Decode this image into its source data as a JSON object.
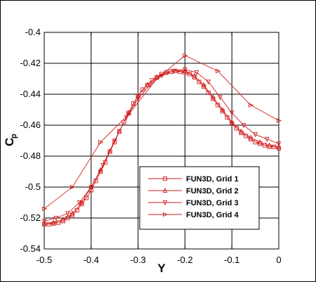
{
  "chart_data": {
    "type": "line",
    "xlabel": "Y",
    "ylabel": "C",
    "ylabel_subscript": "p",
    "xlim": [
      -0.5,
      0
    ],
    "ylim": [
      -0.54,
      -0.4
    ],
    "x_ticks": [
      "-0.5",
      "-0.4",
      "-0.3",
      "-0.2",
      "-0.1",
      "0"
    ],
    "y_ticks": [
      "-0.4",
      "-0.42",
      "-0.44",
      "-0.46",
      "-0.48",
      "-0.5",
      "-0.52",
      "-0.54"
    ],
    "grid": true,
    "legend_position": "bottom-right",
    "color": "#d21e1e",
    "series": [
      {
        "name": "FUN3D, Grid 1",
        "marker": "square",
        "x": [
          -0.5,
          -0.49,
          -0.48,
          -0.47,
          -0.46,
          -0.45,
          -0.44,
          -0.43,
          -0.42,
          -0.41,
          -0.4,
          -0.39,
          -0.38,
          -0.37,
          -0.36,
          -0.35,
          -0.34,
          -0.33,
          -0.32,
          -0.31,
          -0.3,
          -0.29,
          -0.28,
          -0.27,
          -0.26,
          -0.25,
          -0.24,
          -0.23,
          -0.22,
          -0.21,
          -0.2,
          -0.19,
          -0.18,
          -0.17,
          -0.16,
          -0.15,
          -0.14,
          -0.13,
          -0.12,
          -0.11,
          -0.1,
          -0.09,
          -0.08,
          -0.07,
          -0.06,
          -0.05,
          -0.04,
          -0.03,
          -0.02,
          -0.01,
          0
        ],
        "y": [
          -0.524,
          -0.524,
          -0.5235,
          -0.523,
          -0.522,
          -0.52,
          -0.518,
          -0.515,
          -0.511,
          -0.507,
          -0.502,
          -0.496,
          -0.49,
          -0.484,
          -0.477,
          -0.471,
          -0.464,
          -0.458,
          -0.452,
          -0.446,
          -0.441,
          -0.437,
          -0.434,
          -0.431,
          -0.429,
          -0.427,
          -0.426,
          -0.4255,
          -0.425,
          -0.4255,
          -0.426,
          -0.427,
          -0.429,
          -0.432,
          -0.435,
          -0.439,
          -0.443,
          -0.447,
          -0.451,
          -0.455,
          -0.459,
          -0.462,
          -0.465,
          -0.467,
          -0.469,
          -0.471,
          -0.472,
          -0.473,
          -0.474,
          -0.474,
          -0.475
        ]
      },
      {
        "name": "FUN3D, Grid 2",
        "marker": "triangle-up",
        "x": [
          -0.5,
          -0.48,
          -0.46,
          -0.44,
          -0.42,
          -0.4,
          -0.38,
          -0.36,
          -0.34,
          -0.32,
          -0.3,
          -0.28,
          -0.26,
          -0.24,
          -0.22,
          -0.2,
          -0.18,
          -0.16,
          -0.14,
          -0.12,
          -0.1,
          -0.08,
          -0.06,
          -0.04,
          -0.02,
          0
        ],
        "y": [
          -0.524,
          -0.523,
          -0.521,
          -0.517,
          -0.51,
          -0.5,
          -0.489,
          -0.477,
          -0.464,
          -0.452,
          -0.441,
          -0.434,
          -0.429,
          -0.426,
          -0.425,
          -0.425,
          -0.428,
          -0.434,
          -0.442,
          -0.45,
          -0.458,
          -0.464,
          -0.468,
          -0.471,
          -0.473,
          -0.474
        ]
      },
      {
        "name": "FUN3D, Grid 3",
        "marker": "triangle-down",
        "x": [
          -0.5,
          -0.475,
          -0.45,
          -0.425,
          -0.4,
          -0.375,
          -0.35,
          -0.325,
          -0.3,
          -0.275,
          -0.25,
          -0.225,
          -0.2,
          -0.175,
          -0.15,
          -0.125,
          -0.1,
          -0.075,
          -0.05,
          -0.025,
          0
        ],
        "y": [
          -0.522,
          -0.52,
          -0.517,
          -0.51,
          -0.5,
          -0.486,
          -0.47,
          -0.455,
          -0.443,
          -0.434,
          -0.428,
          -0.425,
          -0.424,
          -0.426,
          -0.432,
          -0.442,
          -0.452,
          -0.46,
          -0.466,
          -0.469,
          -0.472
        ]
      },
      {
        "name": "FUN3D, Grid 4",
        "marker": "triangle-right",
        "x": [
          -0.5,
          -0.44,
          -0.38,
          -0.32,
          -0.26,
          -0.2,
          -0.13,
          -0.06,
          0
        ],
        "y": [
          -0.514,
          -0.5,
          -0.471,
          -0.453,
          -0.43,
          -0.415,
          -0.425,
          -0.447,
          -0.457
        ]
      }
    ]
  }
}
